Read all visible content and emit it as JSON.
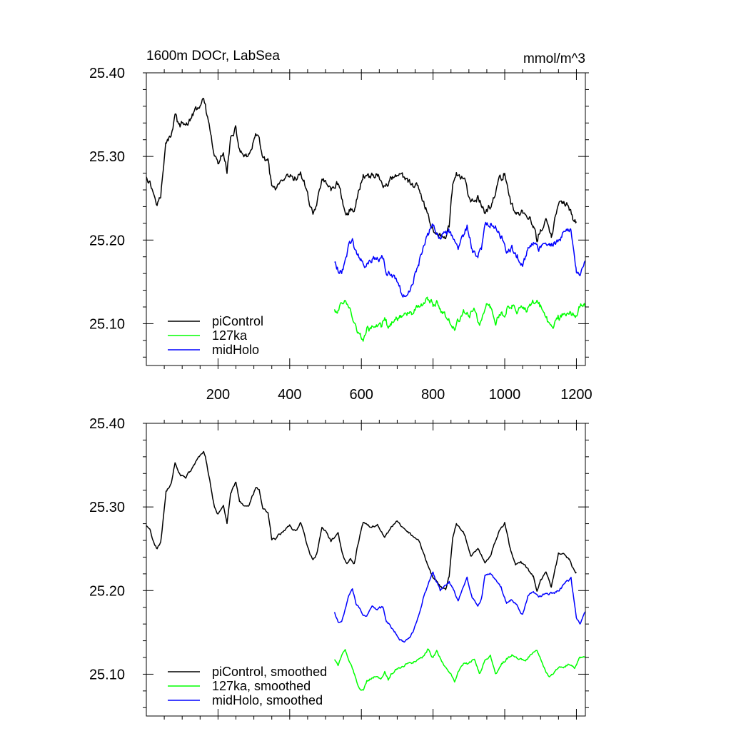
{
  "chart_data": [
    {
      "type": "line",
      "title": "1600m DOCr, LabSea",
      "units": "mmol/m^3",
      "xlim": [
        0,
        1225
      ],
      "ylim": [
        25.05,
        25.4
      ],
      "x_ticks": [
        200,
        400,
        600,
        800,
        1000,
        1200
      ],
      "x_tick_labels": [
        "200",
        "400",
        "600",
        "800",
        "1000",
        "1200"
      ],
      "y_ticks": [
        25.1,
        25.2,
        25.3,
        25.4
      ],
      "y_tick_labels": [
        "25.10",
        "25.20",
        "25.30",
        "25.40"
      ],
      "legend_position": "bottom-left",
      "noise": 0.006,
      "series": [
        {
          "name": "piControl",
          "color": "#000000",
          "x": [
            0,
            10,
            20,
            30,
            40,
            55,
            70,
            80,
            90,
            100,
            110,
            130,
            150,
            160,
            165,
            175,
            190,
            200,
            215,
            225,
            235,
            250,
            260,
            270,
            285,
            295,
            305,
            315,
            325,
            340,
            350,
            360,
            370,
            380,
            400,
            410,
            420,
            430,
            440,
            455,
            465,
            475,
            490,
            500,
            515,
            535,
            545,
            560,
            570,
            580,
            590,
            605,
            625,
            645,
            665,
            685,
            700,
            720,
            740,
            760,
            780,
            800,
            815,
            835,
            845,
            855,
            865,
            880,
            890,
            905,
            925,
            945,
            960,
            985,
            1000,
            1015,
            1030,
            1045,
            1065,
            1080,
            1090,
            1100,
            1115,
            1130,
            1140,
            1150,
            1165,
            1180,
            1190,
            1200
          ],
          "y": [
            25.278,
            25.272,
            25.258,
            25.25,
            25.256,
            25.318,
            25.33,
            25.352,
            25.34,
            25.338,
            25.336,
            25.348,
            25.362,
            25.365,
            25.36,
            25.336,
            25.3,
            25.292,
            25.302,
            25.282,
            25.318,
            25.33,
            25.308,
            25.302,
            25.3,
            25.312,
            25.322,
            25.32,
            25.3,
            25.292,
            25.262,
            25.262,
            25.268,
            25.27,
            25.278,
            25.272,
            25.272,
            25.282,
            25.268,
            25.246,
            25.235,
            25.242,
            25.275,
            25.27,
            25.26,
            25.27,
            25.248,
            25.232,
            25.238,
            25.232,
            25.255,
            25.28,
            25.276,
            25.278,
            25.264,
            25.276,
            25.282,
            25.272,
            25.266,
            25.26,
            25.236,
            25.216,
            25.208,
            25.202,
            25.218,
            25.265,
            25.28,
            25.272,
            25.266,
            25.24,
            25.25,
            25.232,
            25.242,
            25.272,
            25.28,
            25.25,
            25.232,
            25.235,
            25.226,
            25.218,
            25.2,
            25.212,
            25.222,
            25.205,
            25.225,
            25.244,
            25.244,
            25.238,
            25.228,
            25.222
          ]
        },
        {
          "name": "127ka",
          "color": "#00ff00",
          "x": [
            525,
            535,
            545,
            555,
            565,
            575,
            585,
            595,
            605,
            615,
            625,
            640,
            655,
            665,
            675,
            685,
            695,
            710,
            725,
            740,
            755,
            770,
            785,
            800,
            810,
            830,
            850,
            860,
            870,
            885,
            900,
            915,
            930,
            945,
            960,
            975,
            990,
            1005,
            1020,
            1040,
            1060,
            1080,
            1090,
            1100,
            1115,
            1125,
            1135,
            1150,
            1165,
            1180,
            1195,
            1210,
            1225
          ],
          "y": [
            25.118,
            25.112,
            25.122,
            25.128,
            25.118,
            25.108,
            25.095,
            25.082,
            25.08,
            25.092,
            25.094,
            25.098,
            25.094,
            25.102,
            25.092,
            25.1,
            25.105,
            25.108,
            25.112,
            25.114,
            25.116,
            25.12,
            25.13,
            25.12,
            25.128,
            25.112,
            25.1,
            25.092,
            25.104,
            25.112,
            25.112,
            25.118,
            25.1,
            25.118,
            25.122,
            25.1,
            25.112,
            25.118,
            25.122,
            25.118,
            25.118,
            25.126,
            25.128,
            25.118,
            25.102,
            25.098,
            25.1,
            25.108,
            25.108,
            25.112,
            25.108,
            25.12,
            25.12
          ]
        },
        {
          "name": "midHolo",
          "color": "#0000ff",
          "x": [
            525,
            535,
            545,
            555,
            565,
            575,
            585,
            595,
            605,
            615,
            630,
            645,
            660,
            670,
            680,
            695,
            710,
            720,
            735,
            745,
            760,
            775,
            790,
            800,
            810,
            820,
            830,
            845,
            860,
            870,
            880,
            895,
            910,
            925,
            935,
            945,
            960,
            975,
            990,
            1005,
            1020,
            1035,
            1050,
            1065,
            1080,
            1095,
            1110,
            1125,
            1140,
            1155,
            1170,
            1185,
            1200,
            1210,
            1225
          ],
          "y": [
            25.175,
            25.162,
            25.162,
            25.178,
            25.195,
            25.202,
            25.185,
            25.18,
            25.172,
            25.17,
            25.18,
            25.178,
            25.18,
            25.162,
            25.158,
            25.15,
            25.14,
            25.138,
            25.145,
            25.152,
            25.17,
            25.195,
            25.212,
            25.22,
            25.21,
            25.2,
            25.205,
            25.21,
            25.198,
            25.188,
            25.2,
            25.215,
            25.19,
            25.18,
            25.19,
            25.218,
            25.22,
            25.212,
            25.205,
            25.185,
            25.19,
            25.182,
            25.17,
            25.195,
            25.198,
            25.192,
            25.195,
            25.196,
            25.198,
            25.202,
            25.21,
            25.215,
            25.168,
            25.16,
            25.175
          ]
        }
      ]
    },
    {
      "type": "line",
      "title": "",
      "xlim": [
        0,
        1225
      ],
      "ylim": [
        25.05,
        25.4
      ],
      "x_ticks": [
        200,
        400,
        600,
        800,
        1000,
        1200
      ],
      "x_tick_labels": [],
      "y_ticks": [
        25.1,
        25.2,
        25.3,
        25.4
      ],
      "y_tick_labels": [
        "25.10",
        "25.20",
        "25.30",
        "25.40"
      ],
      "legend_position": "bottom-left",
      "noise": 0.002,
      "series": [
        {
          "name": "piControl, smoothed",
          "color": "#000000",
          "x": [
            0,
            10,
            20,
            30,
            40,
            55,
            70,
            80,
            90,
            100,
            110,
            130,
            150,
            160,
            165,
            175,
            190,
            200,
            215,
            225,
            235,
            250,
            260,
            270,
            285,
            295,
            305,
            315,
            325,
            340,
            350,
            360,
            370,
            380,
            400,
            410,
            420,
            430,
            440,
            455,
            465,
            475,
            490,
            500,
            515,
            535,
            545,
            560,
            570,
            580,
            590,
            605,
            625,
            645,
            665,
            685,
            700,
            720,
            740,
            760,
            780,
            800,
            815,
            835,
            845,
            855,
            865,
            880,
            890,
            905,
            925,
            945,
            960,
            985,
            1000,
            1015,
            1030,
            1045,
            1065,
            1080,
            1090,
            1100,
            1115,
            1130,
            1140,
            1150,
            1165,
            1180,
            1190,
            1200
          ],
          "y": [
            25.278,
            25.272,
            25.258,
            25.25,
            25.256,
            25.318,
            25.33,
            25.352,
            25.34,
            25.338,
            25.336,
            25.348,
            25.362,
            25.365,
            25.36,
            25.336,
            25.3,
            25.292,
            25.302,
            25.282,
            25.318,
            25.33,
            25.308,
            25.302,
            25.3,
            25.312,
            25.322,
            25.32,
            25.3,
            25.292,
            25.262,
            25.262,
            25.268,
            25.27,
            25.278,
            25.272,
            25.272,
            25.282,
            25.268,
            25.246,
            25.235,
            25.242,
            25.275,
            25.27,
            25.26,
            25.27,
            25.248,
            25.232,
            25.238,
            25.232,
            25.255,
            25.28,
            25.276,
            25.278,
            25.264,
            25.276,
            25.282,
            25.272,
            25.266,
            25.26,
            25.236,
            25.216,
            25.208,
            25.202,
            25.218,
            25.265,
            25.28,
            25.272,
            25.266,
            25.24,
            25.25,
            25.232,
            25.242,
            25.272,
            25.28,
            25.25,
            25.232,
            25.235,
            25.226,
            25.218,
            25.2,
            25.212,
            25.222,
            25.205,
            25.225,
            25.244,
            25.244,
            25.238,
            25.228,
            25.222
          ]
        },
        {
          "name": "127ka, smoothed",
          "color": "#00ff00",
          "x": [
            525,
            535,
            545,
            555,
            565,
            575,
            585,
            595,
            605,
            615,
            625,
            640,
            655,
            665,
            675,
            685,
            695,
            710,
            725,
            740,
            755,
            770,
            785,
            800,
            810,
            830,
            850,
            860,
            870,
            885,
            900,
            915,
            930,
            945,
            960,
            975,
            990,
            1005,
            1020,
            1040,
            1060,
            1080,
            1090,
            1100,
            1115,
            1125,
            1135,
            1150,
            1165,
            1180,
            1195,
            1210,
            1225
          ],
          "y": [
            25.118,
            25.112,
            25.122,
            25.128,
            25.118,
            25.108,
            25.095,
            25.082,
            25.08,
            25.092,
            25.094,
            25.098,
            25.094,
            25.102,
            25.092,
            25.1,
            25.105,
            25.108,
            25.112,
            25.114,
            25.116,
            25.12,
            25.13,
            25.12,
            25.128,
            25.112,
            25.1,
            25.092,
            25.104,
            25.112,
            25.112,
            25.118,
            25.1,
            25.118,
            25.122,
            25.1,
            25.112,
            25.118,
            25.122,
            25.118,
            25.118,
            25.126,
            25.128,
            25.118,
            25.102,
            25.098,
            25.1,
            25.108,
            25.108,
            25.112,
            25.108,
            25.12,
            25.12
          ]
        },
        {
          "name": "midHolo, smoothed",
          "color": "#0000ff",
          "x": [
            525,
            535,
            545,
            555,
            565,
            575,
            585,
            595,
            605,
            615,
            630,
            645,
            660,
            670,
            680,
            695,
            710,
            720,
            735,
            745,
            760,
            775,
            790,
            800,
            810,
            820,
            830,
            845,
            860,
            870,
            880,
            895,
            910,
            925,
            935,
            945,
            960,
            975,
            990,
            1005,
            1020,
            1035,
            1050,
            1065,
            1080,
            1095,
            1110,
            1125,
            1140,
            1155,
            1170,
            1185,
            1200,
            1210,
            1225
          ],
          "y": [
            25.175,
            25.162,
            25.162,
            25.178,
            25.195,
            25.202,
            25.185,
            25.18,
            25.172,
            25.17,
            25.18,
            25.178,
            25.18,
            25.162,
            25.158,
            25.15,
            25.14,
            25.138,
            25.145,
            25.152,
            25.17,
            25.195,
            25.212,
            25.22,
            25.21,
            25.2,
            25.205,
            25.21,
            25.198,
            25.188,
            25.2,
            25.215,
            25.19,
            25.18,
            25.19,
            25.218,
            25.22,
            25.212,
            25.205,
            25.185,
            25.19,
            25.182,
            25.17,
            25.195,
            25.198,
            25.192,
            25.195,
            25.196,
            25.198,
            25.202,
            25.21,
            25.215,
            25.168,
            25.16,
            25.175
          ]
        }
      ]
    }
  ]
}
